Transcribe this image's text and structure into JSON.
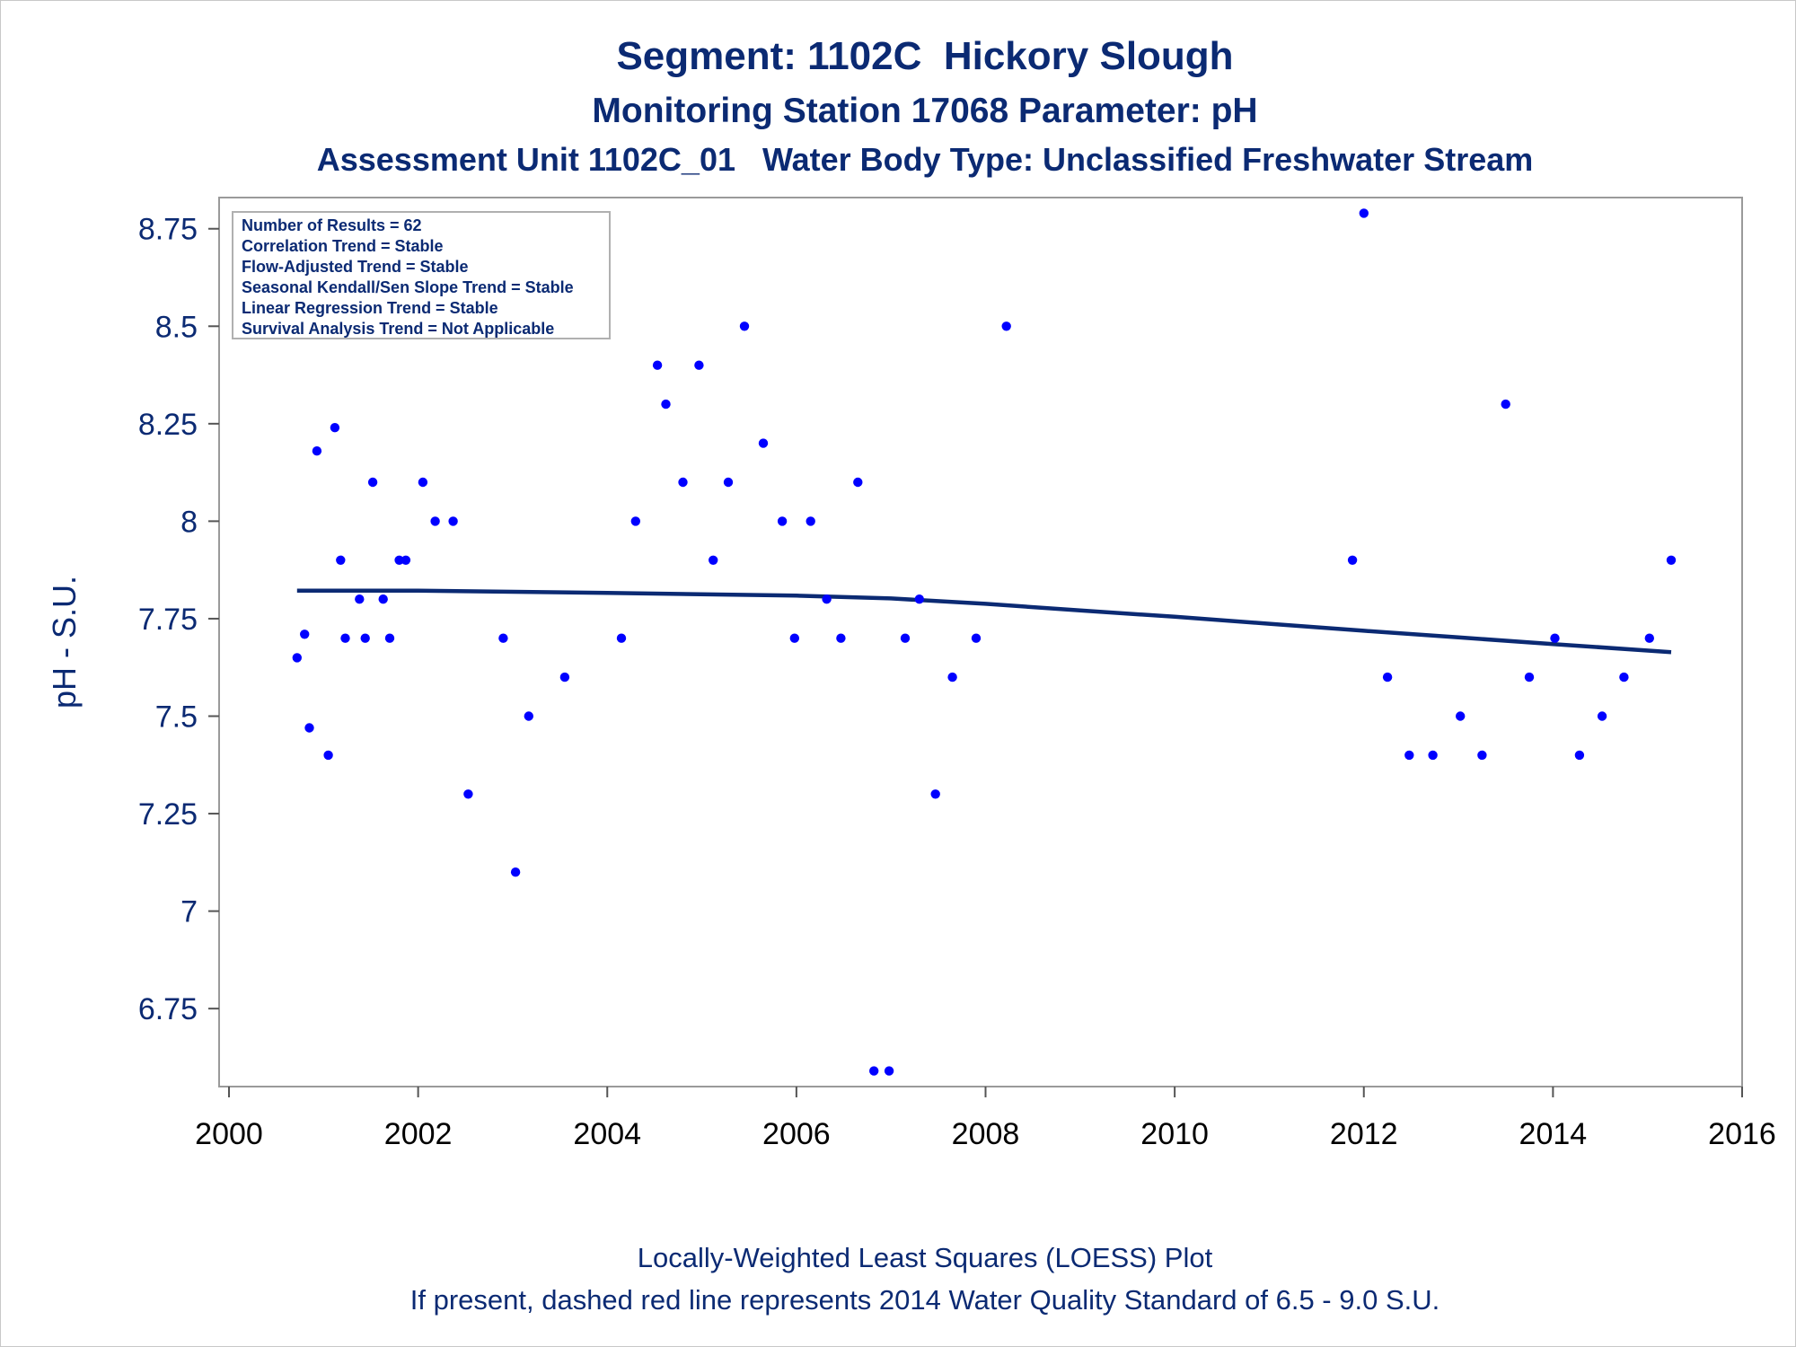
{
  "titles": {
    "line1": "Segment: 1102C  Hickory Slough",
    "line2": "Monitoring Station 17068 Parameter: pH",
    "line3": "Assessment Unit 1102C_01   Water Body Type: Unclassified Freshwater Stream"
  },
  "footnotes": {
    "line1": "Locally-Weighted Least Squares (LOESS) Plot",
    "line2": "If present, dashed red line represents 2014 Water Quality Standard of 6.5 - 9.0 S.U."
  },
  "colors": {
    "text": "#0b2a73",
    "points": "#0000ff",
    "loess_line": "#0b2a73",
    "axis": "#888888"
  },
  "chart_data": {
    "type": "scatter",
    "title": "Segment: 1102C  Hickory Slough",
    "xlabel": "",
    "ylabel": "pH - S.U.",
    "xlim": [
      2000,
      2016
    ],
    "ylim": [
      6.55,
      8.83
    ],
    "x_ticks": [
      2000,
      2002,
      2004,
      2006,
      2008,
      2010,
      2012,
      2014,
      2016
    ],
    "x_tick_labels": [
      "2000",
      "2002",
      "2004",
      "2006",
      "2008",
      "2010",
      "2012",
      "2014",
      "2016"
    ],
    "y_ticks": [
      6.75,
      7,
      7.25,
      7.5,
      7.75,
      8,
      8.25,
      8.5,
      8.75
    ],
    "y_tick_labels": [
      "6.75",
      "7",
      "7.25",
      "7.5",
      "7.75",
      "8",
      "8.25",
      "8.5",
      "8.75"
    ],
    "grid": false,
    "stats_box": {
      "position": "top-left",
      "lines": [
        "Number of Results = 62",
        "Correlation Trend = Stable",
        "Flow-Adjusted Trend = Stable",
        "Seasonal Kendall/Sen Slope Trend = Stable",
        "Linear Regression Trend = Stable",
        "Survival Analysis Trend = Not Applicable"
      ]
    },
    "series": [
      {
        "kind": "points",
        "points": [
          [
            2000.72,
            7.65
          ],
          [
            2000.8,
            7.71
          ],
          [
            2000.85,
            7.47
          ],
          [
            2000.93,
            8.18
          ],
          [
            2001.05,
            7.4
          ],
          [
            2001.12,
            8.24
          ],
          [
            2001.18,
            7.9
          ],
          [
            2001.23,
            7.7
          ],
          [
            2001.38,
            7.8
          ],
          [
            2001.44,
            7.7
          ],
          [
            2001.52,
            8.1
          ],
          [
            2001.63,
            7.8
          ],
          [
            2001.7,
            7.7
          ],
          [
            2001.8,
            7.9
          ],
          [
            2001.87,
            7.9
          ],
          [
            2002.05,
            8.1
          ],
          [
            2002.18,
            8.0
          ],
          [
            2002.37,
            8.0
          ],
          [
            2002.53,
            7.3
          ],
          [
            2002.9,
            7.7
          ],
          [
            2003.03,
            7.1
          ],
          [
            2003.17,
            7.5
          ],
          [
            2003.55,
            7.6
          ],
          [
            2004.15,
            7.7
          ],
          [
            2004.3,
            8.0
          ],
          [
            2004.53,
            8.4
          ],
          [
            2004.62,
            8.3
          ],
          [
            2004.8,
            8.1
          ],
          [
            2004.97,
            8.4
          ],
          [
            2005.12,
            7.9
          ],
          [
            2005.28,
            8.1
          ],
          [
            2005.45,
            8.5
          ],
          [
            2005.65,
            8.2
          ],
          [
            2005.85,
            8.0
          ],
          [
            2005.98,
            7.7
          ],
          [
            2006.15,
            8.0
          ],
          [
            2006.32,
            7.8
          ],
          [
            2006.47,
            7.7
          ],
          [
            2006.65,
            8.1
          ],
          [
            2006.82,
            6.59
          ],
          [
            2006.98,
            6.59
          ],
          [
            2007.15,
            7.7
          ],
          [
            2007.3,
            7.8
          ],
          [
            2007.47,
            7.3
          ],
          [
            2007.65,
            7.6
          ],
          [
            2007.9,
            7.7
          ],
          [
            2008.22,
            8.5
          ],
          [
            2011.88,
            7.9
          ],
          [
            2012.0,
            8.79
          ],
          [
            2012.25,
            7.6
          ],
          [
            2012.48,
            7.4
          ],
          [
            2012.73,
            7.4
          ],
          [
            2013.02,
            7.5
          ],
          [
            2013.25,
            7.4
          ],
          [
            2013.5,
            8.3
          ],
          [
            2013.75,
            7.6
          ],
          [
            2014.02,
            7.7
          ],
          [
            2014.28,
            7.4
          ],
          [
            2014.52,
            7.5
          ],
          [
            2014.75,
            7.6
          ],
          [
            2015.02,
            7.7
          ],
          [
            2015.25,
            7.9
          ]
        ]
      },
      {
        "kind": "loess_line",
        "points": [
          [
            2000.72,
            7.822
          ],
          [
            2002.0,
            7.822
          ],
          [
            2004.0,
            7.816
          ],
          [
            2006.0,
            7.809
          ],
          [
            2007.0,
            7.802
          ],
          [
            2008.0,
            7.788
          ],
          [
            2009.0,
            7.771
          ],
          [
            2010.0,
            7.755
          ],
          [
            2011.0,
            7.737
          ],
          [
            2012.0,
            7.719
          ],
          [
            2013.0,
            7.702
          ],
          [
            2014.0,
            7.685
          ],
          [
            2015.25,
            7.664
          ]
        ]
      }
    ]
  }
}
